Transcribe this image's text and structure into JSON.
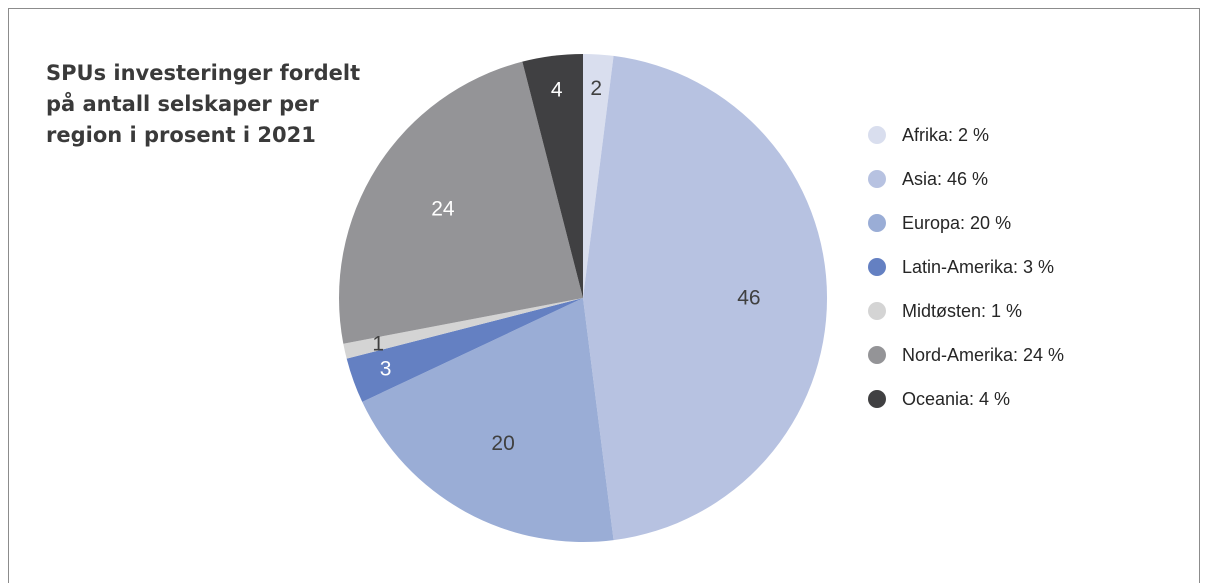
{
  "chart_data": {
    "type": "pie",
    "title": "SPUs investeringer fordelt på antall selskaper per region i prosent i 2021",
    "start_angle_deg": 0,
    "direction": "clockwise",
    "legend_position": "right",
    "slices": [
      {
        "category": "Afrika",
        "value": 2,
        "label": "2",
        "legend": "Afrika: 2 %",
        "color": "#d9deee",
        "label_color": "#404040"
      },
      {
        "category": "Asia",
        "value": 46,
        "label": "46",
        "legend": "Asia: 46 %",
        "color": "#b7c2e1",
        "label_color": "#404040"
      },
      {
        "category": "Europa",
        "value": 20,
        "label": "20",
        "legend": "Europa: 20 %",
        "color": "#9aadd6",
        "label_color": "#404040"
      },
      {
        "category": "Latin-Amerika",
        "value": 3,
        "label": "3",
        "legend": "Latin-Amerika: 3 %",
        "color": "#6480c2",
        "label_color": "#ffffff"
      },
      {
        "category": "Midtøsten",
        "value": 1,
        "label": "1",
        "legend": "Midtøsten: 1 %",
        "color": "#d4d4d4",
        "label_color": "#404040"
      },
      {
        "category": "Nord-Amerika",
        "value": 24,
        "label": "24",
        "legend": "Nord-Amerika: 24 %",
        "color": "#949497",
        "label_color": "#ffffff"
      },
      {
        "category": "Oceania",
        "value": 4,
        "label": "4",
        "legend": "Oceania: 4 %",
        "color": "#404042",
        "label_color": "#ffffff"
      }
    ]
  }
}
